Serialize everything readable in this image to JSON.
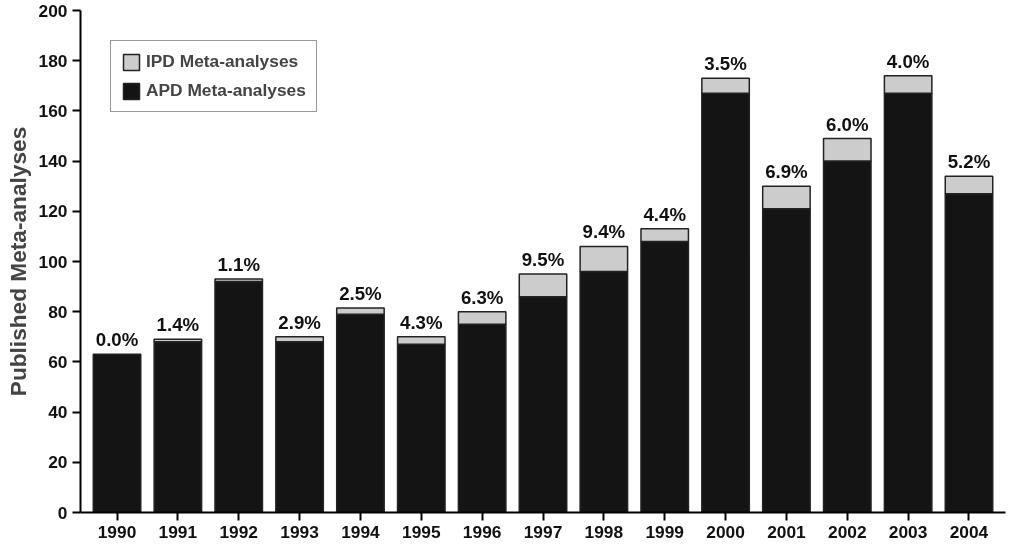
{
  "chart_data": {
    "type": "bar",
    "stacked": true,
    "ylabel": "Published Meta-analyses",
    "categories": [
      "1990",
      "1991",
      "1992",
      "1993",
      "1994",
      "1995",
      "1996",
      "1997",
      "1998",
      "1999",
      "2000",
      "2001",
      "2002",
      "2003",
      "2004"
    ],
    "series": [
      {
        "name": "APD Meta-analyses",
        "color": "#141414",
        "values": [
          63,
          68,
          92,
          68,
          79,
          67,
          75,
          86,
          96,
          108,
          167,
          121,
          140,
          167,
          127
        ]
      },
      {
        "name": "IPD Meta-analyses",
        "color": "#cccccc",
        "values": [
          0,
          1,
          1,
          2,
          2.5,
          3,
          5,
          9,
          10,
          5,
          6,
          9,
          9,
          7,
          7
        ]
      }
    ],
    "annotations": [
      {
        "text": "0.0%",
        "x": "1990",
        "y": 63
      },
      {
        "text": "1.4%",
        "x": "1991",
        "y": 69
      },
      {
        "text": "1.1%",
        "x": "1992",
        "y": 93
      },
      {
        "text": "2.9%",
        "x": "1993",
        "y": 70
      },
      {
        "text": "2.5%",
        "x": "1994",
        "y": 81.5
      },
      {
        "text": "4.3%",
        "x": "1995",
        "y": 70
      },
      {
        "text": "6.3%",
        "x": "1996",
        "y": 80
      },
      {
        "text": "9.5%",
        "x": "1997",
        "y": 95
      },
      {
        "text": "9.4%",
        "x": "1998",
        "y": 106
      },
      {
        "text": "4.4%",
        "x": "1999",
        "y": 113
      },
      {
        "text": "3.5%",
        "x": "2000",
        "y": 173
      },
      {
        "text": "6.9%",
        "x": "2001",
        "y": 130
      },
      {
        "text": "6.0%",
        "x": "2002",
        "y": 149
      },
      {
        "text": "4.0%",
        "x": "2003",
        "y": 174
      },
      {
        "text": "5.2%",
        "x": "2004",
        "y": 134
      }
    ],
    "ylim": [
      0,
      200
    ],
    "yticks": [
      0,
      20,
      40,
      60,
      80,
      100,
      120,
      140,
      160,
      180,
      200
    ],
    "grid": false,
    "legend": "top left"
  }
}
